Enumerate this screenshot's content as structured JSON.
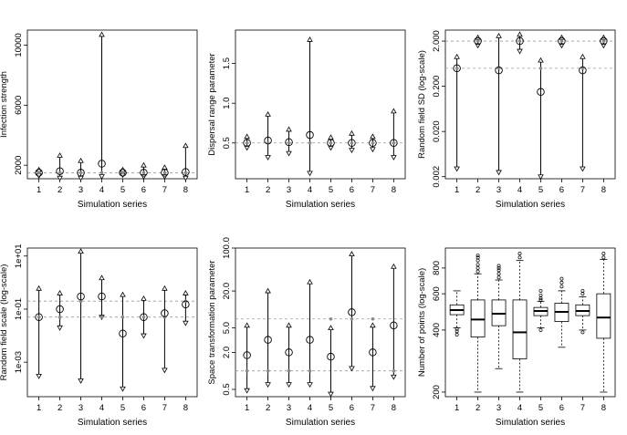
{
  "chart_data": [
    {
      "type": "interval",
      "xlabel": "Simulation series",
      "ylabel": "Infection strength",
      "scale": "linear",
      "ylim": [
        1100,
        11000
      ],
      "yticks": [
        2000,
        6000,
        10000
      ],
      "ytick_labels": [
        "2000",
        "6000",
        "10000"
      ],
      "categories": [
        "1",
        "2",
        "3",
        "4",
        "5",
        "6",
        "7",
        "8"
      ],
      "reference": [
        1500
      ],
      "estimate": [
        1500,
        1600,
        1500,
        2100,
        1500,
        1500,
        1500,
        1550
      ],
      "lower": [
        1300,
        1150,
        1150,
        1250,
        1350,
        1250,
        1250,
        1150
      ],
      "upper": [
        1700,
        2650,
        2300,
        10700,
        1700,
        2000,
        1850,
        3300
      ],
      "ref_markers": [
        1500,
        1500,
        1500,
        1500,
        1500,
        1500,
        1500,
        1500
      ]
    },
    {
      "type": "interval",
      "xlabel": "Simulation series",
      "ylabel": "Dispersal range parameter",
      "scale": "linear",
      "ylim": [
        0.05,
        1.92
      ],
      "yticks": [
        0.5,
        1.0,
        1.5
      ],
      "ytick_labels": [
        "0.5",
        "1.0",
        "1.5"
      ],
      "categories": [
        "1",
        "2",
        "3",
        "4",
        "5",
        "6",
        "7",
        "8"
      ],
      "reference": [
        0.5
      ],
      "estimate": [
        0.5,
        0.53,
        0.51,
        0.6,
        0.5,
        0.5,
        0.5,
        0.5
      ],
      "lower": [
        0.44,
        0.32,
        0.37,
        0.12,
        0.44,
        0.41,
        0.42,
        0.32
      ],
      "upper": [
        0.58,
        0.86,
        0.67,
        1.8,
        0.57,
        0.62,
        0.58,
        0.9
      ],
      "ref_markers": [
        0.5,
        0.5,
        0.5,
        0.5,
        0.5,
        0.5,
        0.5,
        0.5
      ]
    },
    {
      "type": "interval",
      "xlabel": "Simulation series",
      "ylabel": "Random field SD (log-scale)",
      "scale": "log",
      "ylim": [
        0.0018,
        3.5
      ],
      "yticks": [
        0.002,
        0.02,
        0.2,
        2
      ],
      "ytick_labels": [
        "0.002",
        "0.020",
        "0.200",
        "2.000"
      ],
      "categories": [
        "1",
        "2",
        "3",
        "4",
        "5",
        "6",
        "7",
        "8"
      ],
      "reference": [
        2.0,
        0.5
      ],
      "estimate": [
        0.5,
        2.0,
        0.45,
        2.0,
        0.15,
        2.0,
        0.45,
        2.0
      ],
      "lower": [
        0.003,
        1.6,
        0.0025,
        1.2,
        0.002,
        1.6,
        0.003,
        1.6
      ],
      "upper": [
        0.9,
        2.4,
        2.6,
        2.8,
        0.75,
        2.4,
        0.9,
        2.4
      ],
      "ref_markers": [
        0.5,
        2.0,
        0.5,
        2.0,
        0.5,
        2.0,
        0.5,
        2.0
      ]
    },
    {
      "type": "interval",
      "xlabel": "Simulation series",
      "ylabel": "Random field scale (log-scale)",
      "scale": "log",
      "ylim": [
        5e-05,
        20
      ],
      "yticks": [
        0.001,
        0.1,
        10
      ],
      "ytick_labels": [
        "1e-03",
        "1e-01",
        "1e+01"
      ],
      "categories": [
        "1",
        "2",
        "3",
        "4",
        "5",
        "6",
        "7",
        "8"
      ],
      "reference": [
        0.2,
        0.05
      ],
      "estimate": [
        0.05,
        0.1,
        0.3,
        0.3,
        0.012,
        0.05,
        0.07,
        0.15
      ],
      "lower": [
        0.0003,
        0.02,
        0.0002,
        0.05,
        0.0001,
        0.01,
        0.0005,
        0.03
      ],
      "upper": [
        0.6,
        0.4,
        15,
        1.5,
        0.35,
        0.25,
        0.6,
        0.4
      ],
      "ref_markers": [
        0.05,
        0.05,
        0.2,
        0.05,
        0.05,
        0.05,
        0.05,
        0.2
      ]
    },
    {
      "type": "interval",
      "xlabel": "Simulation series",
      "ylabel": "Space transformation parameter",
      "scale": "log",
      "ylim": [
        0.38,
        100
      ],
      "yticks": [
        0.5,
        2.0,
        5.0,
        20.0,
        100.0
      ],
      "ytick_labels": [
        "0.5",
        "2.0",
        "5.0",
        "20.0",
        "100.0"
      ],
      "categories": [
        "1",
        "2",
        "3",
        "4",
        "5",
        "6",
        "7",
        "8"
      ],
      "reference": [
        7.0,
        1.0
      ],
      "estimate": [
        1.8,
        3.2,
        2.0,
        3.2,
        1.7,
        9.0,
        2.0,
        5.5
      ],
      "lower": [
        0.48,
        0.6,
        0.6,
        0.6,
        0.42,
        1.1,
        0.52,
        0.8
      ],
      "upper": [
        5.5,
        20,
        5.5,
        28,
        5.0,
        80,
        5.5,
        50
      ],
      "ref_markers": [
        1.0,
        1.0,
        1.0,
        1.0,
        7.0,
        7.0,
        7.0,
        1.0
      ]
    },
    {
      "type": "box",
      "xlabel": "Simulation series",
      "ylabel": "Number of points (log-scale)",
      "scale": "log",
      "ylim": [
        190,
        1000
      ],
      "yticks": [
        200,
        400,
        600,
        800
      ],
      "ytick_labels": [
        "200",
        "400",
        "600",
        "800"
      ],
      "categories": [
        "1",
        "2",
        "3",
        "4",
        "5",
        "6",
        "7",
        "8"
      ],
      "boxes": [
        {
          "min": 410,
          "q1": 475,
          "median": 500,
          "q3": 530,
          "max": 620,
          "outliers": [
            380,
            395,
            405
          ]
        },
        {
          "min": 200,
          "q1": 370,
          "median": 450,
          "q3": 560,
          "max": 750,
          "outliers": [
            770,
            800,
            830,
            870,
            900,
            920
          ]
        },
        {
          "min": 260,
          "q1": 420,
          "median": 480,
          "q3": 560,
          "max": 700,
          "outliers": [
            720,
            750,
            780,
            800,
            820
          ]
        },
        {
          "min": 200,
          "q1": 290,
          "median": 390,
          "q3": 560,
          "max": 870,
          "outliers": [
            900,
            940
          ]
        },
        {
          "min": 410,
          "q1": 470,
          "median": 495,
          "q3": 515,
          "max": 550,
          "outliers": [
            560,
            570,
            590,
            620,
            400
          ]
        },
        {
          "min": 330,
          "q1": 440,
          "median": 490,
          "q3": 540,
          "max": 620,
          "outliers": [
            650,
            680,
            710
          ]
        },
        {
          "min": 400,
          "q1": 470,
          "median": 495,
          "q3": 530,
          "max": 580,
          "outliers": [
            600,
            620,
            390
          ]
        },
        {
          "min": 200,
          "q1": 365,
          "median": 460,
          "q3": 600,
          "max": 880,
          "outliers": [
            900,
            940
          ]
        }
      ]
    }
  ]
}
